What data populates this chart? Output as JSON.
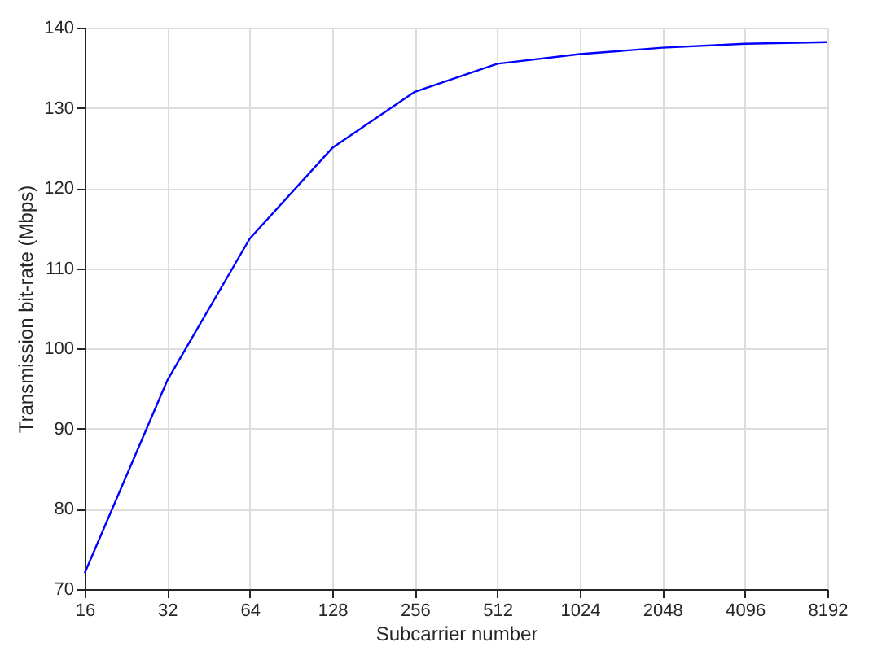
{
  "chart_data": {
    "type": "line",
    "xlabel": "Subcarrier number",
    "ylabel": "Transmission bit-rate (Mbps)",
    "categories": [
      "16",
      "32",
      "64",
      "128",
      "256",
      "512",
      "1024",
      "2048",
      "4096",
      "8192"
    ],
    "series": [
      {
        "color": "#0000ff",
        "values": [
          72,
          96,
          113.7,
          125,
          132,
          135.5,
          136.7,
          137.5,
          138,
          138.2
        ]
      }
    ],
    "ylim": [
      70,
      140
    ],
    "yticks": [
      70,
      80,
      90,
      100,
      110,
      120,
      130,
      140
    ],
    "grid": true
  }
}
